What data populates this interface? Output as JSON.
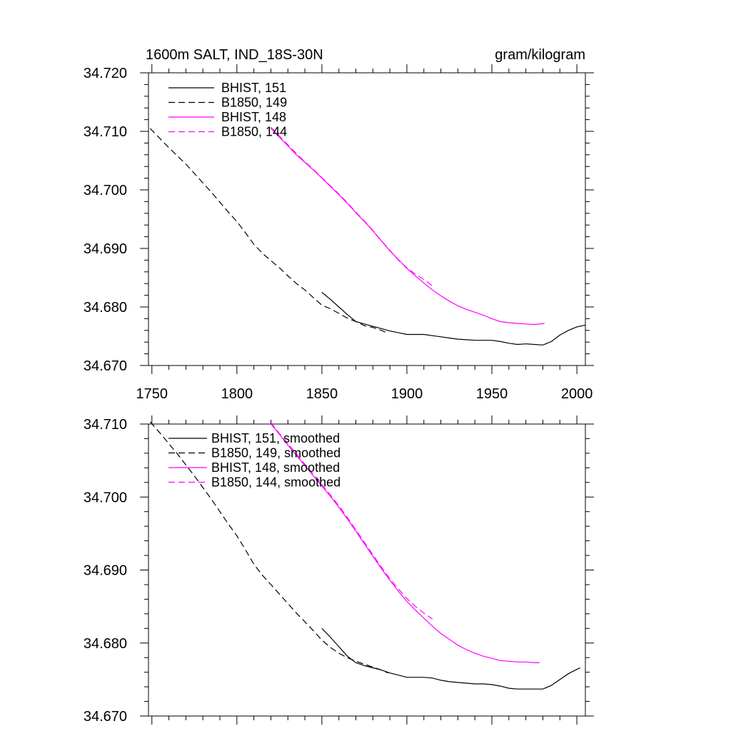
{
  "chart_data": [
    {
      "type": "line",
      "title": "1600m SALT, IND_18S-30N",
      "units": "gram/kilogram",
      "xlim": [
        1748,
        2005
      ],
      "ylim": [
        34.67,
        34.72
      ],
      "yticks": [
        "34.670",
        "34.680",
        "34.690",
        "34.700",
        "34.710",
        "34.720"
      ],
      "xticks": [
        "1750",
        "1800",
        "1850",
        "1900",
        "1950",
        "2000"
      ],
      "legend_position": "top-left",
      "series": [
        {
          "name": "BHIST, 151",
          "color": "#000000",
          "dash": "solid",
          "x": [
            1850,
            1855,
            1860,
            1865,
            1870,
            1875,
            1880,
            1885,
            1890,
            1895,
            1900,
            1905,
            1910,
            1915,
            1920,
            1925,
            1930,
            1935,
            1940,
            1945,
            1950,
            1955,
            1960,
            1965,
            1970,
            1975,
            1980,
            1985,
            1990,
            1995,
            2000,
            2005
          ],
          "y": [
            34.6825,
            34.6813,
            34.68,
            34.6787,
            34.6775,
            34.6771,
            34.6767,
            34.6763,
            34.6759,
            34.6756,
            34.6753,
            34.6753,
            34.6753,
            34.6751,
            34.6749,
            34.6747,
            34.6745,
            34.6744,
            34.6743,
            34.6743,
            34.6743,
            34.6741,
            34.6738,
            34.6736,
            34.6737,
            34.6736,
            34.6735,
            34.6741,
            34.6752,
            34.676,
            34.6766,
            34.6769
          ]
        },
        {
          "name": "B1850, 149",
          "color": "#000000",
          "dash": "dashed",
          "x": [
            1749,
            1755,
            1760,
            1765,
            1770,
            1775,
            1780,
            1785,
            1790,
            1795,
            1800,
            1805,
            1810,
            1815,
            1820,
            1825,
            1830,
            1835,
            1840,
            1845,
            1850,
            1855,
            1860,
            1865,
            1870,
            1875,
            1880,
            1885,
            1889
          ],
          "y": [
            34.7105,
            34.7087,
            34.7072,
            34.7058,
            34.7044,
            34.7028,
            34.7012,
            34.6996,
            34.6979,
            34.6962,
            34.6946,
            34.6927,
            34.6907,
            34.6892,
            34.6879,
            34.6867,
            34.6853,
            34.684,
            34.6829,
            34.6816,
            34.6803,
            34.6797,
            34.6789,
            34.6781,
            34.6775,
            34.6768,
            34.6765,
            34.676,
            34.6755
          ]
        },
        {
          "name": "BHIST, 148",
          "color": "#ff00ff",
          "dash": "solid",
          "x": [
            1820,
            1825,
            1830,
            1835,
            1840,
            1845,
            1850,
            1855,
            1860,
            1865,
            1870,
            1875,
            1880,
            1885,
            1890,
            1895,
            1900,
            1905,
            1910,
            1915,
            1920,
            1925,
            1930,
            1935,
            1940,
            1945,
            1950,
            1955,
            1960,
            1965,
            1970,
            1975,
            1981
          ],
          "y": [
            34.7105,
            34.709,
            34.7075,
            34.706,
            34.7047,
            34.7034,
            34.702,
            34.7006,
            34.6992,
            34.6977,
            34.6961,
            34.6946,
            34.693,
            34.6913,
            34.6896,
            34.6881,
            34.6866,
            34.6853,
            34.6841,
            34.6829,
            34.6819,
            34.681,
            34.6802,
            34.6796,
            34.6791,
            34.6786,
            34.678,
            34.6775,
            34.6773,
            34.6772,
            34.6771,
            34.677,
            34.6772
          ]
        },
        {
          "name": "B1850, 144",
          "color": "#ff00ff",
          "dash": "dashed",
          "x": [
            1820,
            1825,
            1830,
            1835,
            1840,
            1845,
            1850,
            1855,
            1860,
            1865,
            1870,
            1875,
            1880,
            1885,
            1890,
            1895,
            1900,
            1905,
            1910,
            1915
          ],
          "y": [
            34.7107,
            34.7092,
            34.7077,
            34.7062,
            34.7048,
            34.7035,
            34.7021,
            34.7007,
            34.6993,
            34.6978,
            34.6962,
            34.6947,
            34.6931,
            34.6913,
            34.6897,
            34.688,
            34.6867,
            34.6856,
            34.6847,
            34.6836
          ]
        }
      ]
    },
    {
      "type": "line",
      "title": "",
      "xlim": [
        1748,
        2005
      ],
      "ylim": [
        34.67,
        34.71
      ],
      "yticks": [
        "34.670",
        "34.680",
        "34.690",
        "34.700",
        "34.710"
      ],
      "legend_position": "top-left",
      "series": [
        {
          "name": "BHIST, 151, smoothed",
          "color": "#000000",
          "dash": "solid",
          "x": [
            1850,
            1855,
            1860,
            1865,
            1870,
            1875,
            1880,
            1885,
            1890,
            1895,
            1900,
            1905,
            1910,
            1915,
            1920,
            1925,
            1930,
            1935,
            1940,
            1945,
            1950,
            1955,
            1960,
            1965,
            1970,
            1975,
            1980,
            1985,
            1990,
            1995,
            2000,
            2002
          ],
          "y": [
            34.682,
            34.6808,
            34.6795,
            34.6782,
            34.6773,
            34.6769,
            34.6766,
            34.6763,
            34.6759,
            34.6756,
            34.6753,
            34.6753,
            34.6753,
            34.6752,
            34.6749,
            34.6747,
            34.6746,
            34.6745,
            34.6744,
            34.6744,
            34.6743,
            34.6741,
            34.6738,
            34.6737,
            34.6737,
            34.6737,
            34.6737,
            34.6742,
            34.675,
            34.6758,
            34.6764,
            34.6766
          ]
        },
        {
          "name": "B1850, 149, smoothed",
          "color": "#000000",
          "dash": "dashed",
          "x": [
            1749,
            1755,
            1760,
            1765,
            1770,
            1775,
            1780,
            1785,
            1790,
            1795,
            1800,
            1805,
            1810,
            1815,
            1820,
            1825,
            1830,
            1835,
            1840,
            1845,
            1850,
            1855,
            1860,
            1865,
            1870,
            1875,
            1880,
            1885,
            1889
          ],
          "y": [
            34.7103,
            34.7087,
            34.7073,
            34.7059,
            34.7044,
            34.7029,
            34.7013,
            34.6997,
            34.698,
            34.6963,
            34.6947,
            34.6928,
            34.6908,
            34.6893,
            34.688,
            34.6867,
            34.6854,
            34.6841,
            34.6829,
            34.6817,
            34.6804,
            34.6794,
            34.6786,
            34.678,
            34.6775,
            34.6771,
            34.6767,
            34.6763,
            34.6759
          ]
        },
        {
          "name": "BHIST, 148, smoothed",
          "color": "#ff00ff",
          "dash": "solid",
          "x": [
            1820,
            1825,
            1830,
            1835,
            1840,
            1845,
            1850,
            1855,
            1860,
            1865,
            1870,
            1875,
            1880,
            1885,
            1890,
            1895,
            1900,
            1905,
            1910,
            1915,
            1920,
            1925,
            1930,
            1935,
            1940,
            1945,
            1950,
            1955,
            1960,
            1965,
            1970,
            1975,
            1978
          ],
          "y": [
            34.71,
            34.7086,
            34.7071,
            34.7057,
            34.7043,
            34.7029,
            34.7015,
            34.7001,
            34.6986,
            34.697,
            34.6953,
            34.6936,
            34.6919,
            34.6902,
            34.6886,
            34.6871,
            34.6857,
            34.6845,
            34.6834,
            34.6823,
            34.6813,
            34.6805,
            34.6797,
            34.6791,
            34.6786,
            34.6782,
            34.6779,
            34.6776,
            34.6775,
            34.6774,
            34.6774,
            34.6773,
            34.6773
          ]
        },
        {
          "name": "B1850, 144, smoothed",
          "color": "#ff00ff",
          "dash": "dashed",
          "x": [
            1820,
            1825,
            1830,
            1835,
            1840,
            1845,
            1850,
            1855,
            1860,
            1865,
            1870,
            1875,
            1880,
            1885,
            1890,
            1895,
            1900,
            1905,
            1910,
            1915
          ],
          "y": [
            34.7102,
            34.7087,
            34.7073,
            34.7059,
            34.7045,
            34.7031,
            34.7017,
            34.7003,
            34.6988,
            34.6972,
            34.6955,
            34.6938,
            34.6921,
            34.6904,
            34.6888,
            34.6874,
            34.6861,
            34.685,
            34.6841,
            34.6833
          ]
        }
      ]
    }
  ]
}
